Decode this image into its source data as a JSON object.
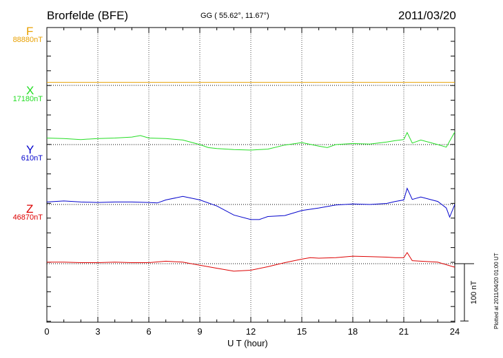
{
  "header": {
    "station": "Brorfelde (BFE)",
    "coords": "GG ( 55.62°,  11.67°)",
    "date": "2011/03/20"
  },
  "footer": {
    "plotted": "Plotted at 2011/04/20 01:00 UT",
    "scale_label": "100 nT"
  },
  "chart_data": {
    "type": "line",
    "xlabel": "U T (hour)",
    "xlim": [
      0,
      24
    ],
    "xticks": [
      0,
      3,
      6,
      9,
      12,
      15,
      18,
      21,
      24
    ],
    "scale_nT": 100,
    "series": [
      {
        "name": "F",
        "baseline": "88880nT",
        "color": "#e8a000",
        "x": [
          0,
          24
        ],
        "y": [
          6,
          6
        ]
      },
      {
        "name": "X",
        "baseline": "17180nT",
        "color": "#22dd22",
        "x": [
          0,
          1,
          2,
          3,
          4,
          5,
          5.5,
          6,
          7,
          8,
          9,
          9.5,
          10,
          11,
          12,
          12.5,
          13,
          14,
          15,
          16,
          16.5,
          17,
          18,
          19,
          20,
          20.5,
          21,
          21.2,
          21.5,
          22,
          23,
          23.5,
          24
        ],
        "y": [
          13,
          12,
          10,
          12,
          13,
          15,
          18,
          13,
          12,
          9,
          0,
          -6,
          -8,
          -10,
          -11,
          -10,
          -9,
          -1,
          4,
          -3,
          -6,
          0,
          2,
          1,
          5,
          8,
          10,
          24,
          3,
          9,
          0,
          -5,
          25
        ]
      },
      {
        "name": "Y",
        "baseline": "610nT",
        "color": "#0000cc",
        "x": [
          0,
          1,
          2,
          3,
          4,
          5,
          6,
          6.5,
          7,
          8,
          9,
          10,
          11,
          12,
          12.5,
          13,
          14,
          15,
          16,
          17,
          18,
          19,
          20,
          20.5,
          21,
          21.2,
          21.5,
          22,
          23,
          23.5,
          23.7,
          24
        ],
        "y": [
          5,
          7,
          5,
          4,
          5,
          5,
          4,
          3,
          9,
          16,
          9,
          -3,
          -21,
          -30,
          -30,
          -24,
          -22,
          -12,
          -7,
          -1,
          1,
          0,
          2,
          6,
          9,
          32,
          10,
          15,
          6,
          -7,
          -25,
          0
        ]
      },
      {
        "name": "Z",
        "baseline": "46870nT",
        "color": "#dd0000",
        "x": [
          0,
          1,
          2,
          3,
          4,
          5,
          6,
          7,
          8,
          9,
          10,
          11,
          12,
          13,
          14,
          15,
          15.5,
          16,
          17,
          18,
          19,
          20,
          20.5,
          21,
          21.2,
          21.5,
          22,
          23,
          23.5,
          24
        ],
        "y": [
          3,
          3,
          2,
          2,
          3,
          2,
          2,
          5,
          3,
          -3,
          -9,
          -15,
          -13,
          -6,
          2,
          9,
          12,
          11,
          12,
          15,
          14,
          13,
          12,
          12,
          22,
          6,
          5,
          3,
          -2,
          -7
        ]
      }
    ]
  }
}
